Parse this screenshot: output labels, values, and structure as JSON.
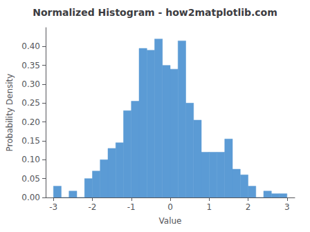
{
  "chart_data": {
    "type": "histogram",
    "title": "Normalized Histogram - how2matplotlib.com",
    "xlabel": "Value",
    "ylabel": "Probability Density",
    "color": "#5b9bd5",
    "bins": [
      -3.0,
      -2.8,
      -2.6,
      -2.4,
      -2.2,
      -2.0,
      -1.8,
      -1.6,
      -1.4,
      -1.2,
      -1.0,
      -0.8,
      -0.6,
      -0.4,
      -0.2,
      0.0,
      0.2,
      0.4,
      0.6,
      0.8,
      1.0,
      1.2,
      1.4,
      1.6,
      1.8,
      2.0,
      2.2,
      2.4,
      2.6,
      2.8,
      3.0
    ],
    "values": [
      0.03,
      0.0,
      0.017,
      0.0,
      0.05,
      0.07,
      0.1,
      0.13,
      0.145,
      0.23,
      0.255,
      0.395,
      0.39,
      0.42,
      0.35,
      0.34,
      0.415,
      0.25,
      0.205,
      0.12,
      0.12,
      0.12,
      0.155,
      0.075,
      0.06,
      0.03,
      0.0,
      0.017,
      0.01,
      0.01
    ],
    "xlim": [
      -3.2,
      3.2
    ],
    "ylim": [
      0,
      0.45
    ],
    "xticks": [
      -3,
      -2,
      -1,
      0,
      1,
      2,
      3
    ],
    "yticks": [
      {
        "value": 0,
        "label": "0.00"
      },
      {
        "value": 0.05,
        "label": "0.05"
      },
      {
        "value": 0.1,
        "label": "0.10"
      },
      {
        "value": 0.15,
        "label": "0.15"
      },
      {
        "value": 0.2,
        "label": "0.20"
      },
      {
        "value": 0.25,
        "label": "0.25"
      },
      {
        "value": 0.3,
        "label": "0.30"
      },
      {
        "value": 0.35,
        "label": "0.35"
      },
      {
        "value": 0.4,
        "label": "0.40"
      }
    ],
    "grid": false
  }
}
